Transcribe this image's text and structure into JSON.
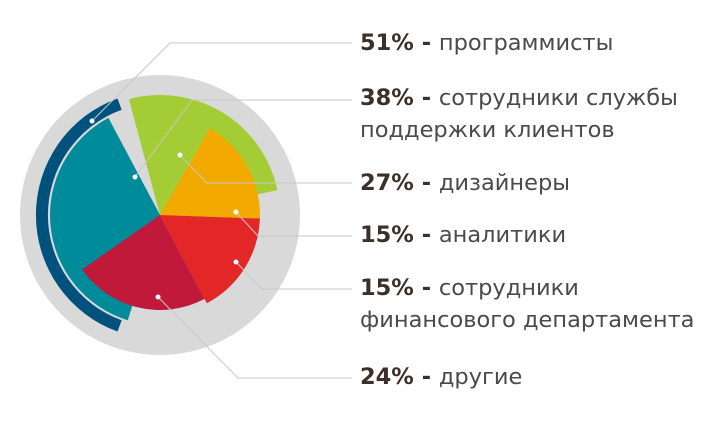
{
  "chart_data": {
    "type": "pie",
    "slices": [
      {
        "value": 51,
        "percent_text": "51%",
        "label": "программисты",
        "color": "#008b9a"
      },
      {
        "value": 38,
        "percent_text": "38%",
        "label": "сотрудники службы поддержки клиентов",
        "label_lines": [
          "сотрудники службы",
          "поддержки клиентов"
        ],
        "color": "#a4cc35"
      },
      {
        "value": 27,
        "percent_text": "27%",
        "label": "дизайнеры",
        "color": "#f2a900"
      },
      {
        "value": 15,
        "percent_text": "15%",
        "label": "аналитики",
        "color": "#e32726"
      },
      {
        "value": 15,
        "percent_text": "15%",
        "label": "сотрудники финансового департамента",
        "label_lines": [
          "сотрудники",
          "финансового департамента"
        ],
        "color": "#c0193a"
      },
      {
        "value": 24,
        "percent_text": "24%",
        "label": "другие",
        "color": "#00527d"
      }
    ],
    "separator": " - ",
    "background_disc_color": "#d9d9d9",
    "leader_line_color": "#c8c8c8"
  }
}
